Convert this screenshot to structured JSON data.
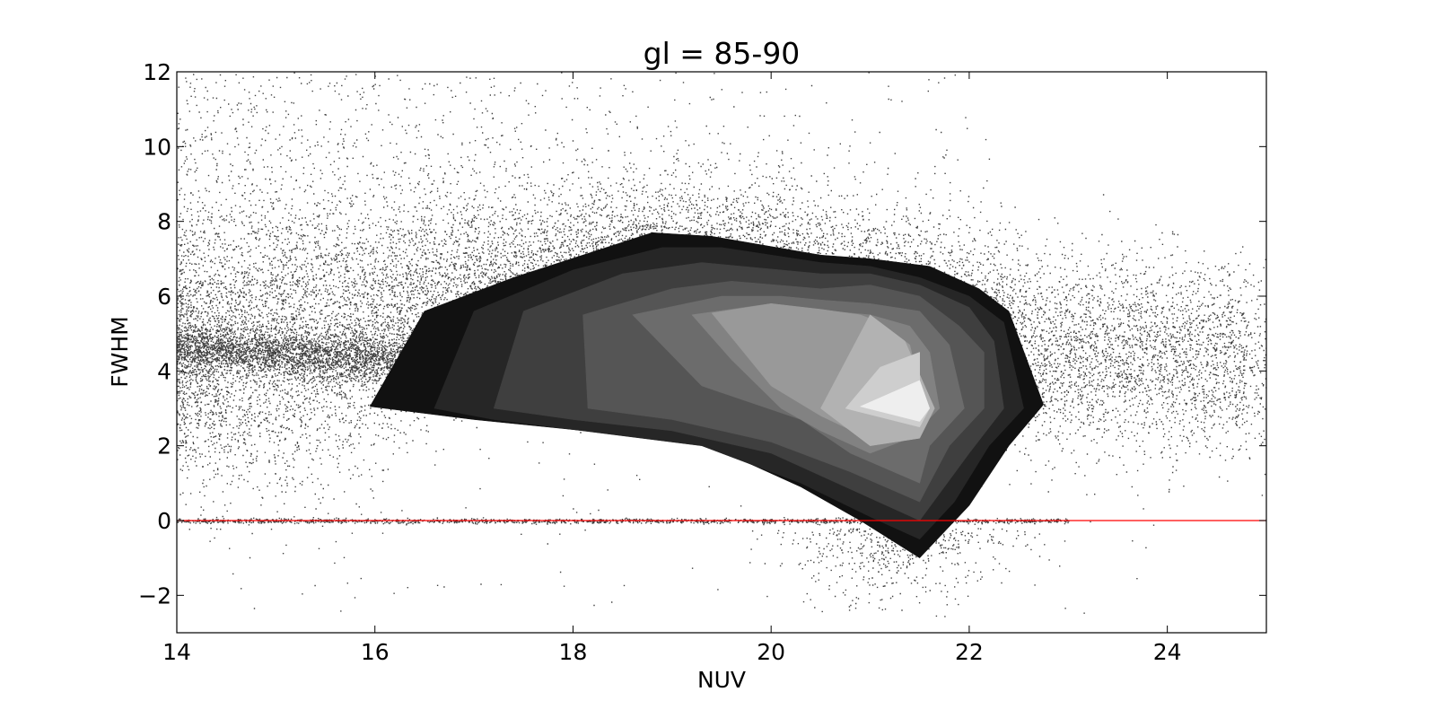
{
  "chart_data": {
    "type": "scatter",
    "title": "gl = 85-90",
    "xlabel": "NUV",
    "ylabel": "FWHM",
    "xlim": [
      14,
      25
    ],
    "ylim": [
      -3,
      12
    ],
    "x_ticks": [
      14,
      16,
      18,
      20,
      22,
      24
    ],
    "y_ticks": [
      -2,
      0,
      2,
      4,
      6,
      8,
      10,
      12
    ],
    "x_tick_labels": [
      "14",
      "16",
      "18",
      "20",
      "22",
      "24"
    ],
    "y_tick_labels": [
      "−2",
      "0",
      "2",
      "4",
      "6",
      "8",
      "10",
      "12"
    ],
    "grid": false,
    "reference_line": {
      "y": 0,
      "color": "#ff0000"
    },
    "scatter_color": "#000000",
    "density_contours": [
      {
        "level": 1,
        "color": "#111111",
        "points": [
          [
            15.95,
            3.05
          ],
          [
            16.5,
            5.6
          ],
          [
            17.4,
            6.5
          ],
          [
            18.8,
            7.7
          ],
          [
            19.4,
            7.6
          ],
          [
            20.5,
            7.1
          ],
          [
            21.0,
            7.0
          ],
          [
            21.6,
            6.8
          ],
          [
            22.1,
            6.2
          ],
          [
            22.4,
            5.6
          ],
          [
            22.75,
            3.1
          ],
          [
            22.4,
            2.0
          ],
          [
            22.0,
            0.4
          ],
          [
            21.5,
            -1.0
          ],
          [
            20.9,
            0.0
          ],
          [
            20.3,
            0.9
          ],
          [
            19.3,
            2.1
          ],
          [
            18.5,
            2.3
          ],
          [
            17.0,
            2.7
          ],
          [
            15.95,
            3.05
          ]
        ]
      },
      {
        "level": 2,
        "color": "#262626",
        "points": [
          [
            16.6,
            3.0
          ],
          [
            17.0,
            5.6
          ],
          [
            18.0,
            6.7
          ],
          [
            18.9,
            7.3
          ],
          [
            19.5,
            7.3
          ],
          [
            20.5,
            6.9
          ],
          [
            21.0,
            6.8
          ],
          [
            21.5,
            6.5
          ],
          [
            22.0,
            6.0
          ],
          [
            22.35,
            5.3
          ],
          [
            22.55,
            3.0
          ],
          [
            22.2,
            2.0
          ],
          [
            21.85,
            0.5
          ],
          [
            21.5,
            -0.5
          ],
          [
            21.0,
            0.1
          ],
          [
            20.3,
            1.0
          ],
          [
            19.3,
            2.0
          ],
          [
            18.4,
            2.3
          ],
          [
            17.2,
            2.7
          ],
          [
            16.6,
            3.0
          ]
        ]
      },
      {
        "level": 3,
        "color": "#3f3f3f",
        "points": [
          [
            17.2,
            3.0
          ],
          [
            17.5,
            5.6
          ],
          [
            18.5,
            6.6
          ],
          [
            19.3,
            6.9
          ],
          [
            20.5,
            6.6
          ],
          [
            21.0,
            6.6
          ],
          [
            21.5,
            6.3
          ],
          [
            22.0,
            5.7
          ],
          [
            22.25,
            4.8
          ],
          [
            22.35,
            3.0
          ],
          [
            22.0,
            1.8
          ],
          [
            21.5,
            0.0
          ],
          [
            21.0,
            0.6
          ],
          [
            20.0,
            1.8
          ],
          [
            19.0,
            2.4
          ],
          [
            18.0,
            2.7
          ],
          [
            17.2,
            3.0
          ]
        ]
      },
      {
        "level": 4,
        "color": "#555555",
        "points": [
          [
            18.15,
            3.0
          ],
          [
            18.1,
            5.5
          ],
          [
            19.0,
            6.2
          ],
          [
            19.6,
            6.4
          ],
          [
            20.5,
            6.2
          ],
          [
            21.0,
            6.3
          ],
          [
            21.5,
            6.0
          ],
          [
            21.9,
            5.2
          ],
          [
            22.15,
            4.5
          ],
          [
            22.15,
            3.0
          ],
          [
            21.8,
            2.0
          ],
          [
            21.5,
            0.5
          ],
          [
            20.8,
            1.3
          ],
          [
            20.0,
            2.1
          ],
          [
            19.0,
            2.7
          ],
          [
            18.15,
            3.0
          ]
        ]
      },
      {
        "level": 5,
        "color": "#6c6c6c",
        "points": [
          [
            19.3,
            3.6
          ],
          [
            18.6,
            5.5
          ],
          [
            19.5,
            6.0
          ],
          [
            20.1,
            6.0
          ],
          [
            20.5,
            5.9
          ],
          [
            21.0,
            5.8
          ],
          [
            21.5,
            5.6
          ],
          [
            21.8,
            4.7
          ],
          [
            21.95,
            3.0
          ],
          [
            21.6,
            2.0
          ],
          [
            21.5,
            1.0
          ],
          [
            20.8,
            1.8
          ],
          [
            20.3,
            2.7
          ],
          [
            19.3,
            3.6
          ]
        ]
      },
      {
        "level": 6,
        "color": "#828282",
        "points": [
          [
            19.6,
            4.3
          ],
          [
            19.2,
            5.5
          ],
          [
            20.0,
            5.8
          ],
          [
            20.6,
            5.6
          ],
          [
            21.0,
            5.5
          ],
          [
            21.4,
            5.2
          ],
          [
            21.6,
            4.5
          ],
          [
            21.7,
            3.0
          ],
          [
            21.4,
            2.2
          ],
          [
            21.0,
            1.8
          ],
          [
            20.5,
            2.4
          ],
          [
            20.1,
            3.0
          ],
          [
            19.6,
            4.3
          ]
        ]
      },
      {
        "level": 7,
        "color": "#999999",
        "points": [
          [
            19.4,
            5.55
          ],
          [
            20.0,
            5.8
          ],
          [
            20.5,
            5.65
          ],
          [
            20.9,
            5.5
          ],
          [
            21.1,
            5.3
          ],
          [
            21.4,
            4.7
          ],
          [
            21.55,
            3.0
          ],
          [
            21.25,
            2.4
          ],
          [
            20.9,
            2.3
          ],
          [
            20.5,
            2.8
          ],
          [
            20.0,
            3.6
          ],
          [
            19.4,
            5.55
          ]
        ]
      },
      {
        "level": 8,
        "color": "#b2b2b2",
        "points": [
          [
            20.5,
            3.0
          ],
          [
            21.0,
            5.5
          ],
          [
            21.35,
            4.8
          ],
          [
            21.65,
            3.0
          ],
          [
            21.5,
            2.2
          ],
          [
            21.0,
            2.0
          ],
          [
            20.5,
            3.0
          ]
        ]
      },
      {
        "level": 9,
        "color": "#cecece",
        "points": [
          [
            20.75,
            3.0
          ],
          [
            21.1,
            4.1
          ],
          [
            21.5,
            4.5
          ],
          [
            21.5,
            3.2
          ],
          [
            21.6,
            3.0
          ],
          [
            21.5,
            2.5
          ],
          [
            20.75,
            3.0
          ]
        ]
      },
      {
        "level": 10,
        "color": "#eeeeee",
        "points": [
          [
            20.9,
            3.05
          ],
          [
            21.5,
            3.75
          ],
          [
            21.6,
            3.0
          ],
          [
            21.5,
            2.65
          ],
          [
            20.9,
            3.05
          ]
        ]
      }
    ]
  }
}
